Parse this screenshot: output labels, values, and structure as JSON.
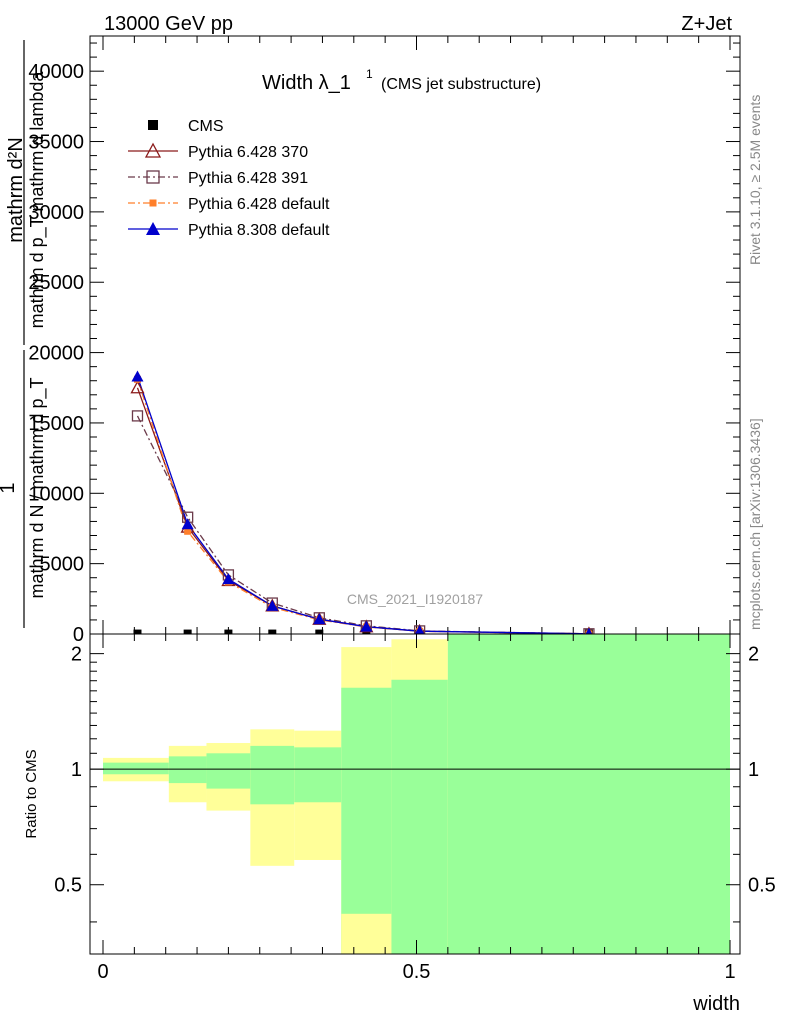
{
  "header": {
    "energy_label": "13000 GeV pp",
    "process_label": "Z+Jet"
  },
  "side_labels": {
    "rivet": "Rivet 3.1.10, ≥ 2.5M events",
    "mcplots": "mcplots.cern.ch [arXiv:1306.3436]"
  },
  "chart_data": [
    {
      "type": "line",
      "title_main": "Width λ_1",
      "title_sup": "1",
      "title_paren": "(CMS jet substructure)",
      "watermark": "CMS_2021_I1920187",
      "ylabel": {
        "numerator": "mathrm d²N",
        "denominator": "mathrm d p_T mathrm d lambda",
        "prefix_top": "1",
        "prefix_bottom": "mathrm d N / mathrm d p_T"
      },
      "xlim": [
        0,
        1
      ],
      "ylim": [
        0,
        42500
      ],
      "yticks": [
        0,
        5000,
        10000,
        15000,
        20000,
        25000,
        30000,
        35000,
        40000
      ],
      "ytick_labels": [
        "0",
        "5000",
        "10000",
        "15000",
        "20000",
        "25000",
        "30000",
        "35000",
        "40000"
      ],
      "legend_position": "top-left",
      "series": [
        {
          "name": "CMS",
          "color": "#000000",
          "marker": "filled-square",
          "line": "none",
          "x": [
            0.055,
            0.135,
            0.2,
            0.27,
            0.345,
            0.42,
            0.505,
            0.775
          ],
          "y": [
            30,
            30,
            30,
            30,
            30,
            30,
            30,
            30
          ]
        },
        {
          "name": "Pythia 6.428 370",
          "color": "#8b1a1a",
          "marker": "open-triangle",
          "line": "solid",
          "x": [
            0.055,
            0.135,
            0.2,
            0.27,
            0.345,
            0.42,
            0.505,
            0.775
          ],
          "y": [
            17500,
            7600,
            3800,
            2000,
            1050,
            520,
            200,
            15
          ]
        },
        {
          "name": "Pythia 6.428 391",
          "color": "#6b3a4a",
          "marker": "open-square",
          "line": "dashdot",
          "x": [
            0.055,
            0.135,
            0.2,
            0.27,
            0.345,
            0.42,
            0.505,
            0.775
          ],
          "y": [
            15500,
            8300,
            4200,
            2200,
            1150,
            580,
            220,
            15
          ]
        },
        {
          "name": "Pythia 6.428 default",
          "color": "#ff7f2a",
          "marker": "filled-square",
          "line": "dashdot",
          "x": [
            0.055,
            0.135,
            0.2,
            0.27,
            0.345,
            0.42,
            0.505,
            0.775
          ],
          "y": [
            18100,
            7300,
            3700,
            1900,
            1000,
            500,
            190,
            12
          ]
        },
        {
          "name": "Pythia 8.308 default",
          "color": "#0000cc",
          "marker": "filled-triangle",
          "line": "solid",
          "x": [
            0.055,
            0.135,
            0.2,
            0.27,
            0.345,
            0.42,
            0.505,
            0.775
          ],
          "y": [
            18300,
            7800,
            3900,
            2000,
            1050,
            520,
            200,
            15
          ]
        }
      ]
    },
    {
      "type": "area",
      "ylabel": "Ratio to CMS",
      "xlabel": "width",
      "xlim": [
        0,
        1
      ],
      "ylim": [
        0.33,
        2.25
      ],
      "yticks": [
        0.5,
        1,
        2
      ],
      "ytick_labels": [
        "0.5",
        "1",
        "2"
      ],
      "xticks": [
        0,
        0.5,
        1
      ],
      "xtick_labels": [
        "0",
        "0.5",
        "1"
      ],
      "reference_line": 1,
      "band_colors": {
        "outer": "#ffff99",
        "inner": "#99ff99"
      },
      "bins": [
        {
          "x0": 0.0,
          "x1": 0.105,
          "outer_lo": 0.93,
          "outer_hi": 1.07,
          "inner_lo": 0.97,
          "inner_hi": 1.04
        },
        {
          "x0": 0.105,
          "x1": 0.165,
          "outer_lo": 0.82,
          "outer_hi": 1.15,
          "inner_lo": 0.92,
          "inner_hi": 1.08
        },
        {
          "x0": 0.165,
          "x1": 0.235,
          "outer_lo": 0.78,
          "outer_hi": 1.17,
          "inner_lo": 0.89,
          "inner_hi": 1.1
        },
        {
          "x0": 0.235,
          "x1": 0.305,
          "outer_lo": 0.56,
          "outer_hi": 1.27,
          "inner_lo": 0.81,
          "inner_hi": 1.15
        },
        {
          "x0": 0.305,
          "x1": 0.38,
          "outer_lo": 0.58,
          "outer_hi": 1.26,
          "inner_lo": 0.82,
          "inner_hi": 1.14
        },
        {
          "x0": 0.38,
          "x1": 0.46,
          "outer_lo": 0.33,
          "outer_hi": 2.08,
          "inner_lo": 0.33,
          "inner_hi": 1.63
        },
        {
          "x0": 0.46,
          "x1": 0.55,
          "outer_lo": 0.33,
          "outer_hi": 2.18,
          "inner_lo": 0.33,
          "inner_hi": 1.71
        },
        {
          "x0": 0.55,
          "x1": 1.0,
          "outer_lo": 0.33,
          "outer_hi": 2.25,
          "inner_lo": 0.33,
          "inner_hi": 2.25
        }
      ],
      "inner_lo_second_bin_note": ""
    }
  ]
}
